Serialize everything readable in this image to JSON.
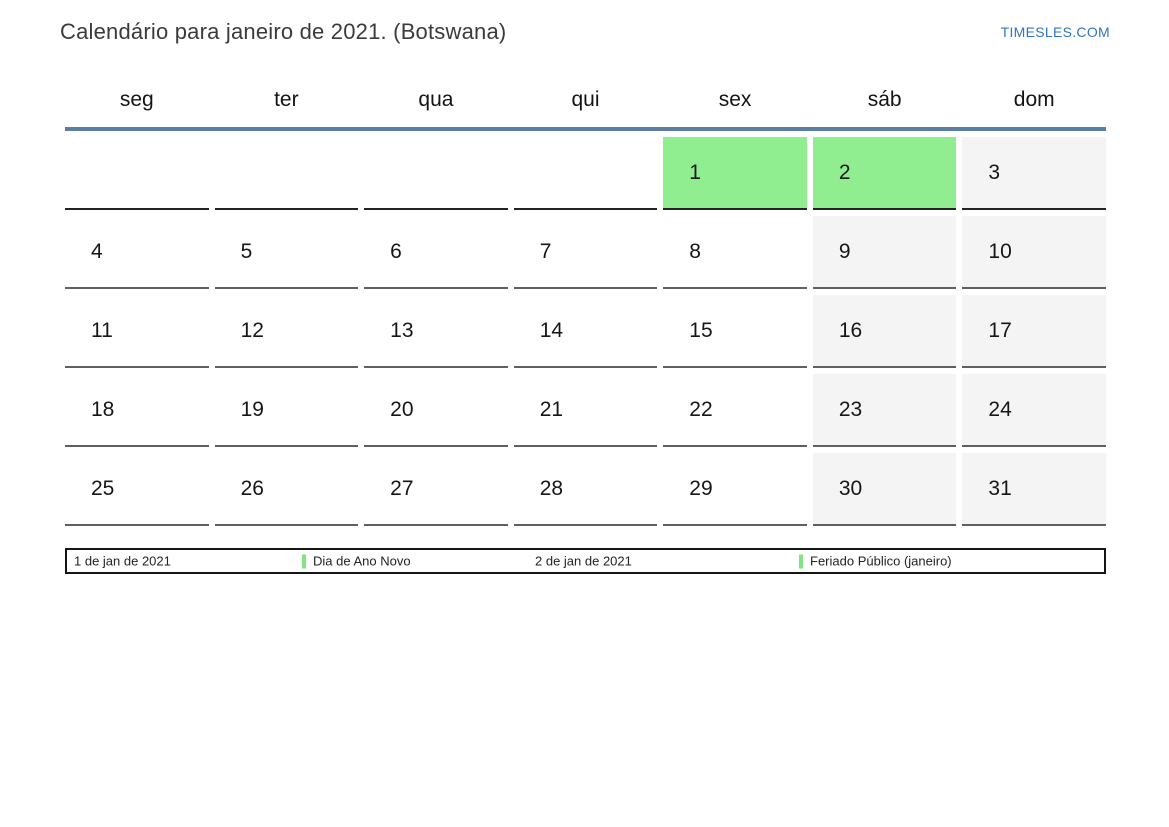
{
  "header": {
    "title": "Calendário para janeiro de 2021. (Botswana)",
    "site_link": "TIMESLES.COM"
  },
  "calendar": {
    "weekdays": [
      "seg",
      "ter",
      "qua",
      "qui",
      "sex",
      "sáb",
      "dom"
    ],
    "weeks": [
      [
        {
          "d": "",
          "t": ""
        },
        {
          "d": "",
          "t": ""
        },
        {
          "d": "",
          "t": ""
        },
        {
          "d": "",
          "t": ""
        },
        {
          "d": "1",
          "t": "holiday"
        },
        {
          "d": "2",
          "t": "holiday"
        },
        {
          "d": "3",
          "t": "weekend"
        }
      ],
      [
        {
          "d": "4",
          "t": ""
        },
        {
          "d": "5",
          "t": ""
        },
        {
          "d": "6",
          "t": ""
        },
        {
          "d": "7",
          "t": ""
        },
        {
          "d": "8",
          "t": ""
        },
        {
          "d": "9",
          "t": "weekend"
        },
        {
          "d": "10",
          "t": "weekend"
        }
      ],
      [
        {
          "d": "11",
          "t": ""
        },
        {
          "d": "12",
          "t": ""
        },
        {
          "d": "13",
          "t": ""
        },
        {
          "d": "14",
          "t": ""
        },
        {
          "d": "15",
          "t": ""
        },
        {
          "d": "16",
          "t": "weekend"
        },
        {
          "d": "17",
          "t": "weekend"
        }
      ],
      [
        {
          "d": "18",
          "t": ""
        },
        {
          "d": "19",
          "t": ""
        },
        {
          "d": "20",
          "t": ""
        },
        {
          "d": "21",
          "t": ""
        },
        {
          "d": "22",
          "t": ""
        },
        {
          "d": "23",
          "t": "weekend"
        },
        {
          "d": "24",
          "t": "weekend"
        }
      ],
      [
        {
          "d": "25",
          "t": ""
        },
        {
          "d": "26",
          "t": ""
        },
        {
          "d": "27",
          "t": ""
        },
        {
          "d": "28",
          "t": ""
        },
        {
          "d": "29",
          "t": ""
        },
        {
          "d": "30",
          "t": "weekend"
        },
        {
          "d": "31",
          "t": "weekend"
        }
      ]
    ],
    "colors": {
      "holiday_bg": "#90ee90",
      "weekend_bg": "#f4f4f4",
      "header_line": "#5b7ca3",
      "link_blue": "#3175c2",
      "legend_marker": "#82e582"
    }
  },
  "legend": {
    "items": [
      {
        "label": "1 de jan de 2021",
        "marker": false
      },
      {
        "label": "Dia de Ano Novo",
        "marker": true
      },
      {
        "label": "2 de jan de 2021",
        "marker": false
      },
      {
        "label": "Feriado Público (janeiro)",
        "marker": true
      }
    ]
  }
}
